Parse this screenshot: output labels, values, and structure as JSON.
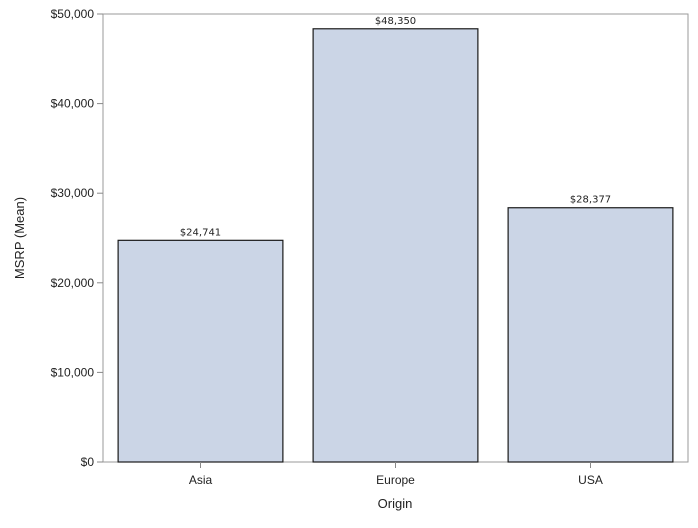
{
  "chart_data": {
    "type": "bar",
    "categories": [
      "Asia",
      "Europe",
      "USA"
    ],
    "values": [
      24741,
      48350,
      28377
    ],
    "data_labels": [
      "$24,741",
      "$48,350",
      "$28,377"
    ],
    "xlabel": "Origin",
    "ylabel": "MSRP (Mean)",
    "ylim": [
      0,
      50000
    ],
    "yticks": [
      0,
      10000,
      20000,
      30000,
      40000,
      50000
    ],
    "ytick_labels": [
      "$0",
      "$10,000",
      "$20,000",
      "$30,000",
      "$40,000",
      "$50,000"
    ],
    "grid": false,
    "bar_color": "#cbd5e6",
    "bar_edge_color": "#1a1a1a"
  }
}
